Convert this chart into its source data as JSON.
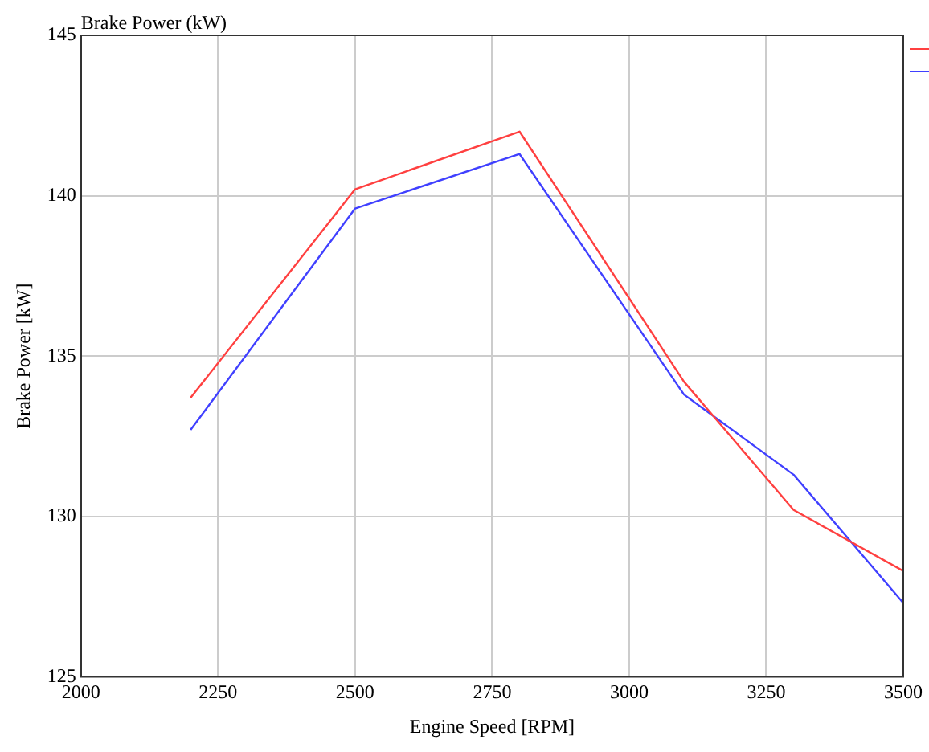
{
  "chart_data": {
    "type": "line",
    "title": "Brake Power (kW)",
    "xlabel": "Engine Speed [RPM]",
    "ylabel": "Brake Power [kW]",
    "x": [
      2200,
      2500,
      2800,
      3100,
      3300,
      3500
    ],
    "series": [
      {
        "color": "#ff4040",
        "values": [
          133.7,
          140.2,
          142.0,
          134.2,
          130.2,
          128.3
        ]
      },
      {
        "color": "#4040ff",
        "values": [
          132.7,
          139.6,
          141.3,
          133.8,
          131.3,
          127.3
        ]
      }
    ],
    "xlim": [
      2000,
      3500
    ],
    "xticks": [
      2000,
      2250,
      2500,
      2750,
      3000,
      3250,
      3500
    ],
    "ylim": [
      125,
      145
    ],
    "yticks": [
      125,
      130,
      135,
      140,
      145
    ],
    "grid": true,
    "marker": "none",
    "line_style": "solid"
  }
}
